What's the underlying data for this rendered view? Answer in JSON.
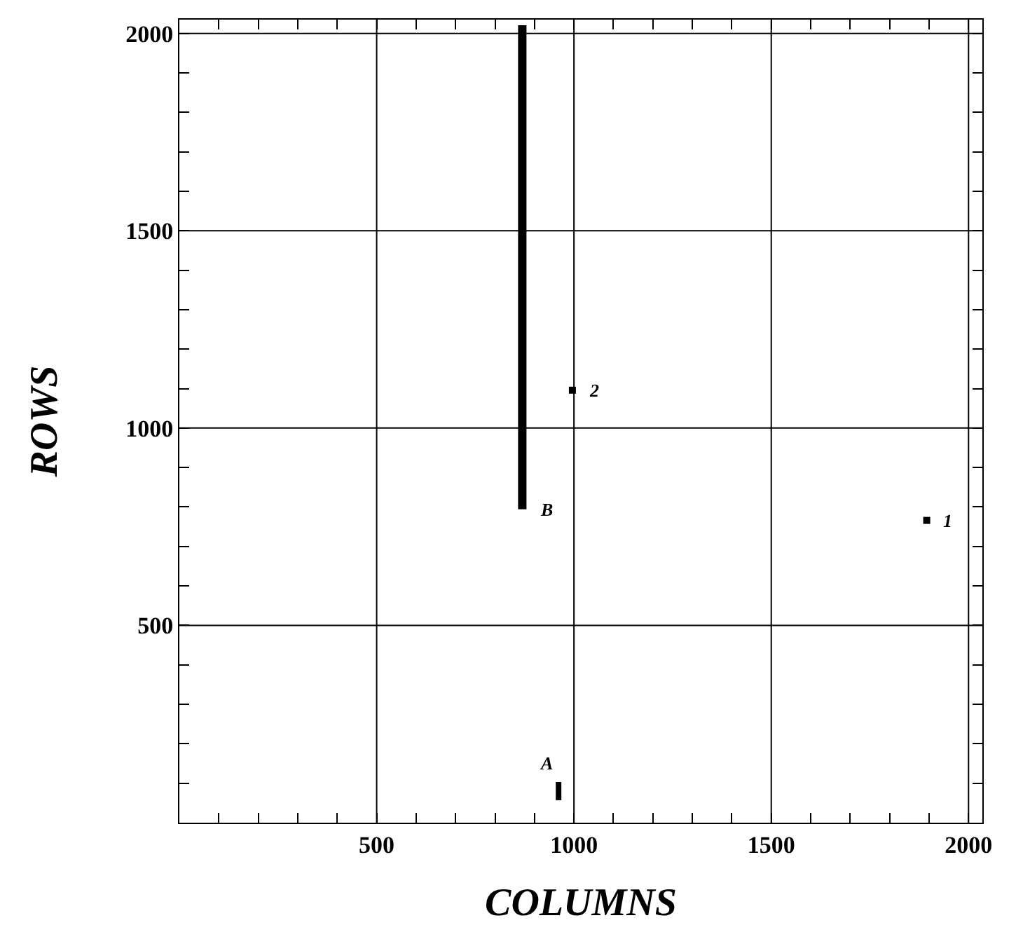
{
  "chart_data": {
    "type": "scatter",
    "xlabel": "COLUMNS",
    "ylabel": "ROWS",
    "xlim": [
      0,
      2035
    ],
    "ylim": [
      0,
      2035
    ],
    "xticks": [
      {
        "value": 100,
        "label": null
      },
      {
        "value": 200,
        "label": null
      },
      {
        "value": 300,
        "label": null
      },
      {
        "value": 400,
        "label": null
      },
      500,
      {
        "value": 600,
        "label": null
      },
      {
        "value": 700,
        "label": null
      },
      {
        "value": 800,
        "label": null
      },
      {
        "value": 900,
        "label": null
      },
      1000,
      {
        "value": 1100,
        "label": null
      },
      {
        "value": 1200,
        "label": null
      },
      {
        "value": 1300,
        "label": null
      },
      {
        "value": 1400,
        "label": null
      },
      1500,
      {
        "value": 1600,
        "label": null
      },
      {
        "value": 1700,
        "label": null
      },
      {
        "value": 1800,
        "label": null
      },
      {
        "value": 1900,
        "label": null
      },
      2000
    ],
    "yticks": [
      {
        "value": 100,
        "label": null
      },
      {
        "value": 200,
        "label": null
      },
      {
        "value": 300,
        "label": null
      },
      {
        "value": 400,
        "label": null
      },
      500,
      {
        "value": 600,
        "label": null
      },
      {
        "value": 700,
        "label": null
      },
      {
        "value": 800,
        "label": null
      },
      {
        "value": 900,
        "label": null
      },
      1000,
      {
        "value": 1100,
        "label": null
      },
      {
        "value": 1200,
        "label": null
      },
      {
        "value": 1300,
        "label": null
      },
      {
        "value": 1400,
        "label": null
      },
      1500,
      {
        "value": 1600,
        "label": null
      },
      {
        "value": 1700,
        "label": null
      },
      {
        "value": 1800,
        "label": null
      },
      {
        "value": 1900,
        "label": null
      },
      2000
    ],
    "grid": true,
    "series": [
      {
        "type": "line",
        "color": "#000000",
        "x": [
          869,
          869
        ],
        "values": [
          794,
          2021
        ]
      },
      {
        "type": "line",
        "color": "#000000",
        "x": [
          961,
          961
        ],
        "values": [
          57,
          103
        ]
      },
      {
        "type": "scatter",
        "color": "#000000",
        "marker": "square",
        "x": [
          1894,
          996
        ],
        "values": [
          766,
          1096
        ]
      }
    ],
    "annotations": [
      {
        "text": "A",
        "x": 961,
        "y": 103
      },
      {
        "text": "B",
        "x": 869,
        "y": 794
      },
      {
        "text": "1",
        "x": 1894,
        "y": 766
      },
      {
        "text": "2",
        "x": 996,
        "y": 1096
      }
    ]
  }
}
